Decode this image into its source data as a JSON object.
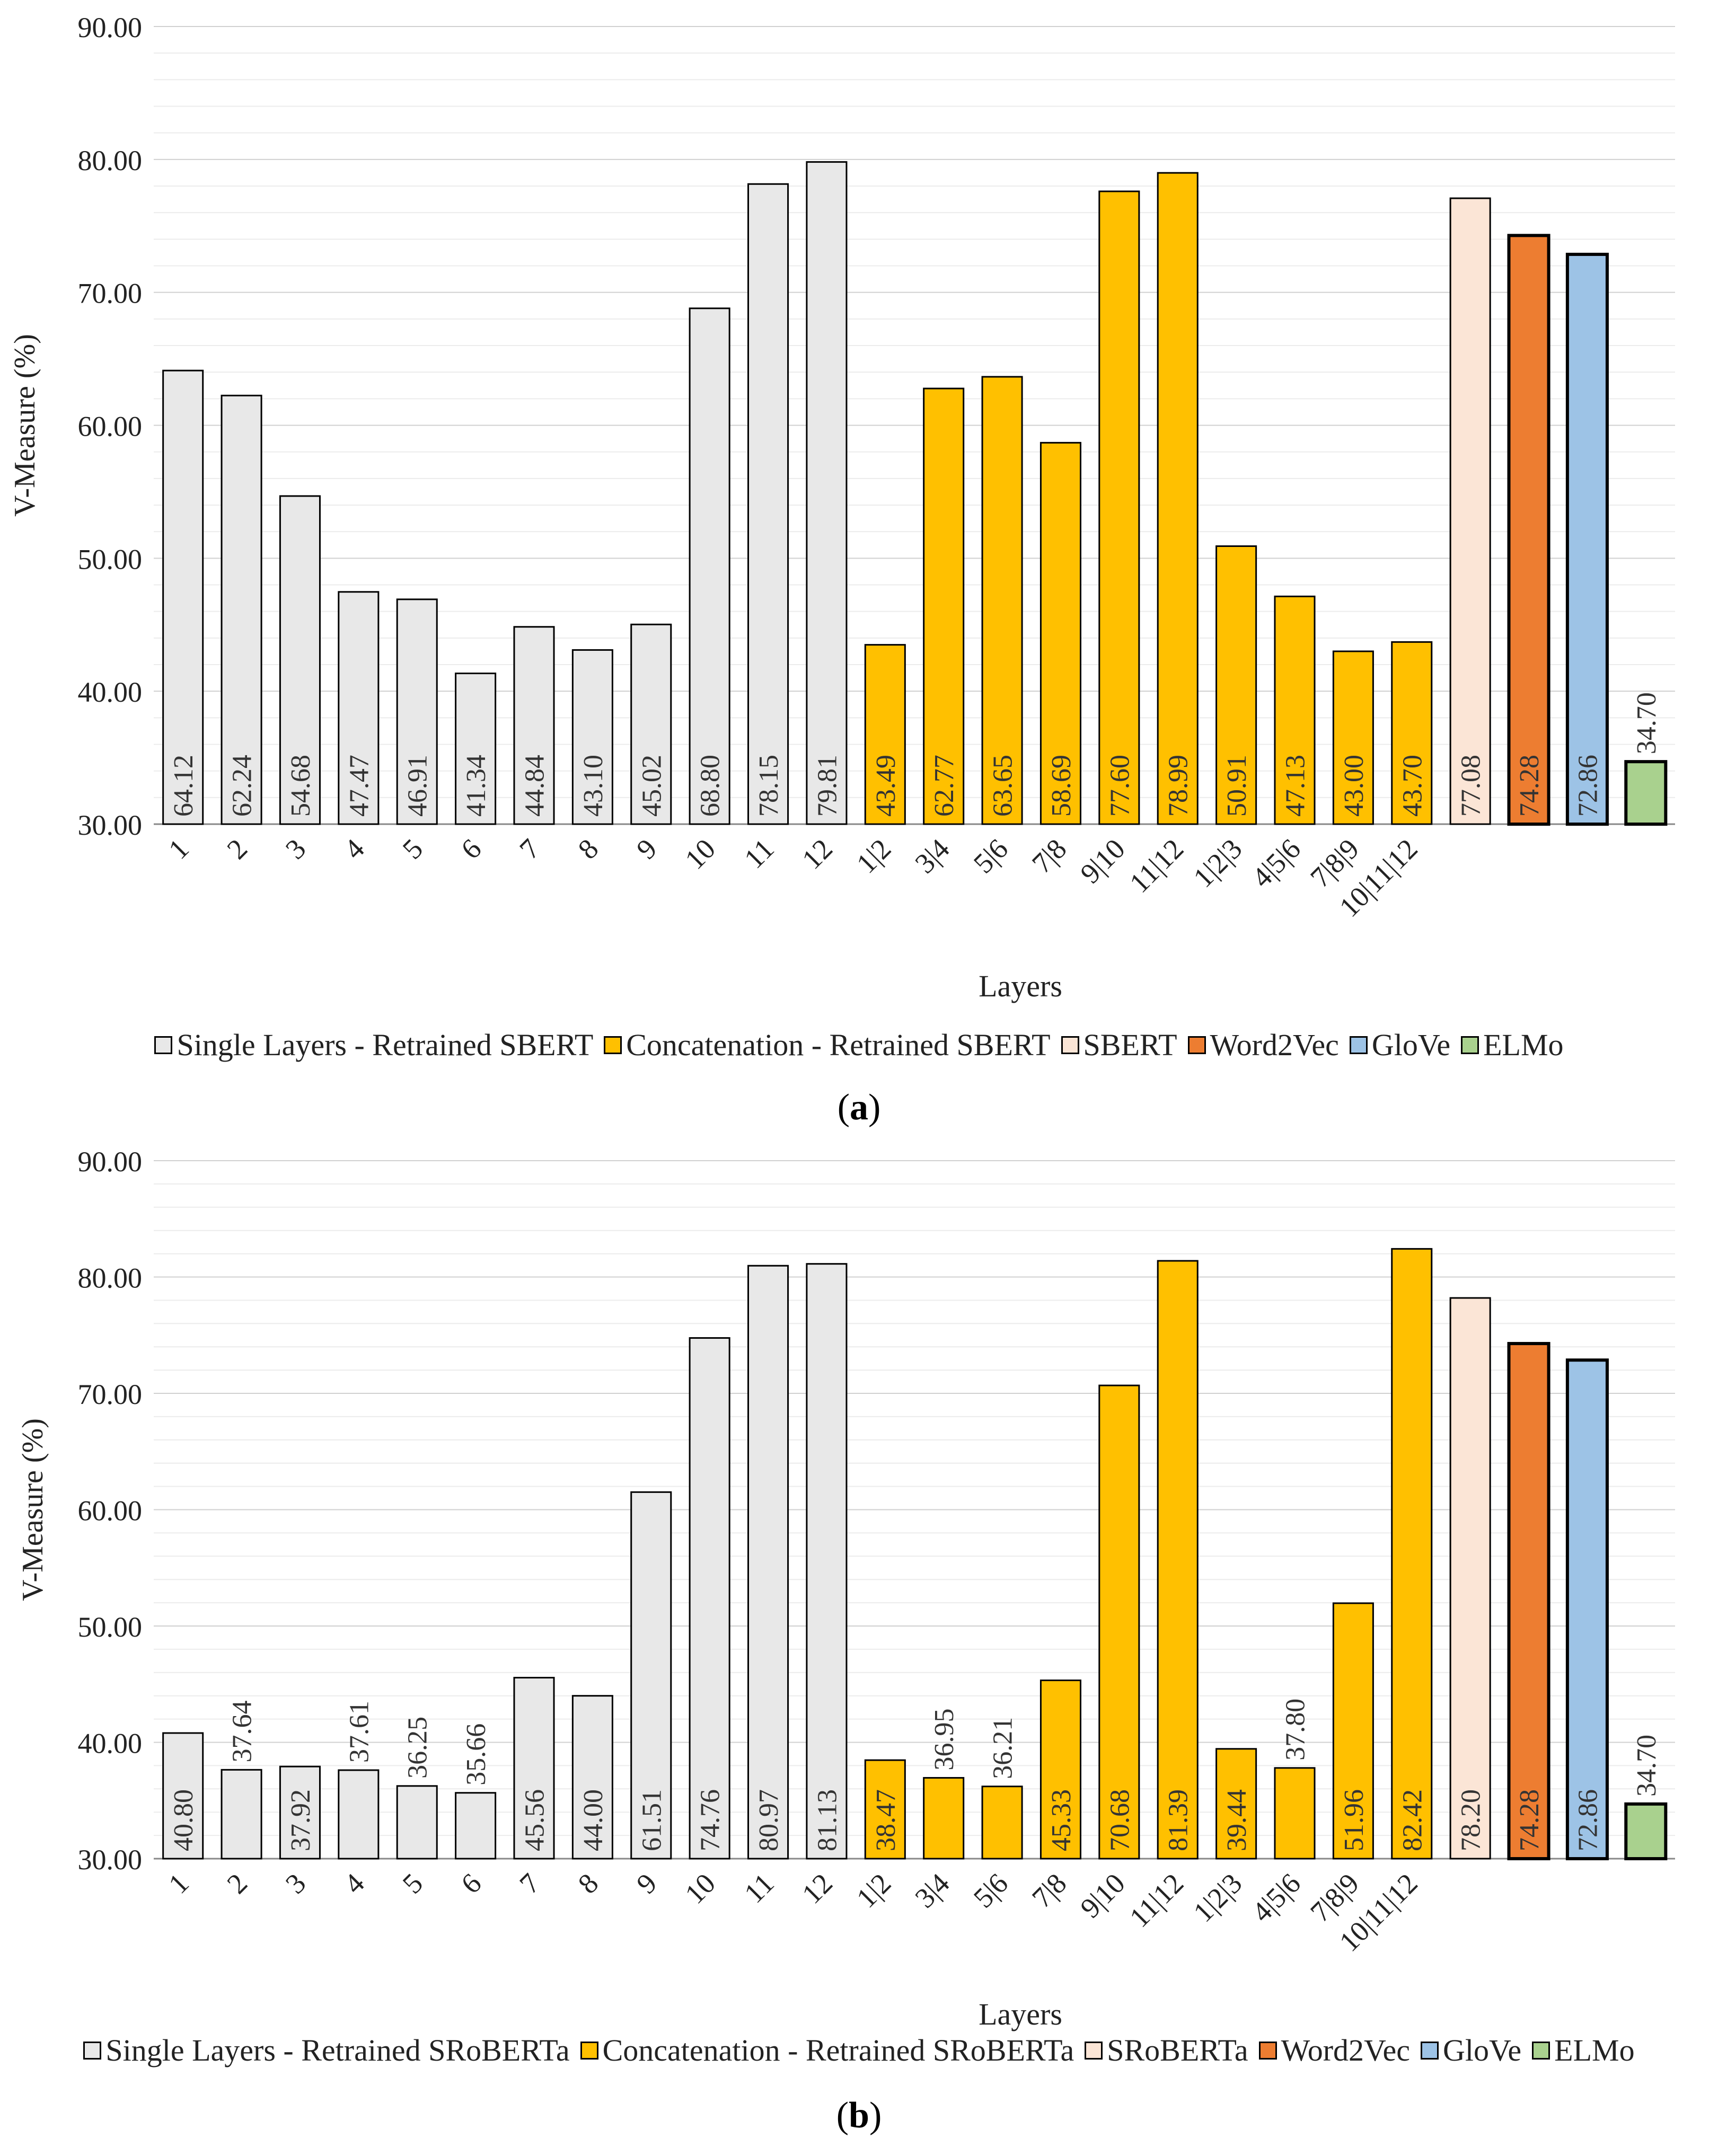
{
  "figure": {
    "panels": [
      {
        "id": "a",
        "label": "a",
        "legend": [
          {
            "label": "Single Layers - Retrained SBERT",
            "color": "#e8e8e8"
          },
          {
            "label": "Concatenation - Retrained SBERT",
            "color": "#ffc000"
          },
          {
            "label": "SBERT",
            "color": "#fbe5d6"
          },
          {
            "label": "Word2Vec",
            "color": "#ed7d31"
          },
          {
            "label": "GloVe",
            "color": "#9dc3e6"
          },
          {
            "label": "ELMo",
            "color": "#a9d18e"
          }
        ]
      },
      {
        "id": "b",
        "label": "b",
        "legend": [
          {
            "label": "Single Layers - Retrained SRoBERTa",
            "color": "#e8e8e8"
          },
          {
            "label": "Concatenation - Retrained SRoBERTa",
            "color": "#ffc000"
          },
          {
            "label": "SRoBERTa",
            "color": "#fbe5d6"
          },
          {
            "label": "Word2Vec",
            "color": "#ed7d31"
          },
          {
            "label": "GloVe",
            "color": "#9dc3e6"
          },
          {
            "label": "ELMo",
            "color": "#a9d18e"
          }
        ]
      }
    ]
  },
  "chart_data": [
    {
      "type": "bar",
      "title": "",
      "xlabel": "Layers",
      "ylabel": "V-Measure (%)",
      "ylim": [
        30,
        90
      ],
      "yticks": [
        "30.00",
        "40.00",
        "50.00",
        "60.00",
        "70.00",
        "80.00",
        "90.00"
      ],
      "categories": [
        "1",
        "2",
        "3",
        "4",
        "5",
        "6",
        "7",
        "8",
        "9",
        "10",
        "11",
        "12",
        "1|2",
        "3|4",
        "5|6",
        "7|8",
        "9|10",
        "11|12",
        "1|2|3",
        "4|5|6",
        "7|8|9",
        "10|11|12",
        "",
        "",
        "",
        ""
      ],
      "values": [
        64.12,
        62.24,
        54.68,
        47.47,
        46.91,
        41.34,
        44.84,
        43.1,
        45.02,
        68.8,
        78.15,
        79.81,
        43.49,
        62.77,
        63.65,
        58.69,
        77.6,
        78.99,
        50.91,
        47.13,
        43.0,
        43.7,
        77.08,
        74.28,
        72.86,
        34.7
      ],
      "labels": [
        "64.12",
        "62.24",
        "54.68",
        "47.47",
        "46.91",
        "41.34",
        "44.84",
        "43.10",
        "45.02",
        "68.80",
        "78.15",
        "79.81",
        "43.49",
        "62.77",
        "63.65",
        "58.69",
        "77.60",
        "78.99",
        "50.91",
        "47.13",
        "43.00",
        "43.70",
        "77.08",
        "74.28",
        "72.86",
        "34.70"
      ],
      "series_index": [
        0,
        0,
        0,
        0,
        0,
        0,
        0,
        0,
        0,
        0,
        0,
        0,
        1,
        1,
        1,
        1,
        1,
        1,
        1,
        1,
        1,
        1,
        2,
        3,
        4,
        5
      ],
      "series": [
        "Single Layers - Retrained SBERT",
        "Concatenation - Retrained SBERT",
        "SBERT",
        "Word2Vec",
        "GloVe",
        "ELMo"
      ],
      "colors": [
        "#e8e8e8",
        "#ffc000",
        "#fbe5d6",
        "#ed7d31",
        "#9dc3e6",
        "#a9d18e"
      ],
      "label_outside": [
        25
      ],
      "grid": true,
      "legend_position": "bottom"
    },
    {
      "type": "bar",
      "title": "",
      "xlabel": "Layers",
      "ylabel": "V-Measure (%)",
      "ylim": [
        30,
        90
      ],
      "yticks": [
        "30.00",
        "40.00",
        "50.00",
        "60.00",
        "70.00",
        "80.00",
        "90.00"
      ],
      "categories": [
        "1",
        "2",
        "3",
        "4",
        "5",
        "6",
        "7",
        "8",
        "9",
        "10",
        "11",
        "12",
        "1|2",
        "3|4",
        "5|6",
        "7|8",
        "9|10",
        "11|12",
        "1|2|3",
        "4|5|6",
        "7|8|9",
        "10|11|12",
        "",
        "",
        "",
        ""
      ],
      "values": [
        40.8,
        37.64,
        37.92,
        37.61,
        36.25,
        35.66,
        45.56,
        44.0,
        61.51,
        74.76,
        80.97,
        81.13,
        38.47,
        36.95,
        36.21,
        45.33,
        70.68,
        81.39,
        39.44,
        37.8,
        51.96,
        82.42,
        78.2,
        74.28,
        72.86,
        34.7
      ],
      "labels": [
        "40.80",
        "37.64",
        "37.92",
        "37.61",
        "36.25",
        "35.66",
        "45.56",
        "44.00",
        "61.51",
        "74.76",
        "80.97",
        "81.13",
        "38.47",
        "36.95",
        "36.21",
        "45.33",
        "70.68",
        "81.39",
        "39.44",
        "37.80",
        "51.96",
        "82.42",
        "78.20",
        "74.28",
        "72.86",
        "34.70"
      ],
      "series_index": [
        0,
        0,
        0,
        0,
        0,
        0,
        0,
        0,
        0,
        0,
        0,
        0,
        1,
        1,
        1,
        1,
        1,
        1,
        1,
        1,
        1,
        1,
        2,
        3,
        4,
        5
      ],
      "series": [
        "Single Layers - Retrained SRoBERTa",
        "Concatenation - Retrained SRoBERTa",
        "SRoBERTa",
        "Word2Vec",
        "GloVe",
        "ELMo"
      ],
      "colors": [
        "#e8e8e8",
        "#ffc000",
        "#fbe5d6",
        "#ed7d31",
        "#9dc3e6",
        "#a9d18e"
      ],
      "label_outside": [
        1,
        3,
        4,
        5,
        13,
        14,
        19,
        25
      ],
      "grid": true,
      "legend_position": "bottom"
    }
  ]
}
